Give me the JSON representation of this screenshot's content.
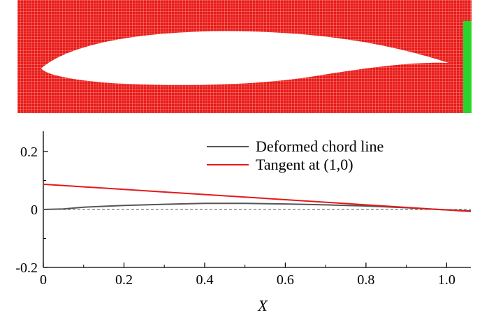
{
  "mesh_panel": {
    "mesh_color": "#e3130f",
    "grid_line_color": "#f7b9b7",
    "outer_boundary_color": "#2bd42b",
    "airfoil_fill": "#ffffff"
  },
  "chart_data": {
    "type": "line",
    "xlabel": "X",
    "ylabel": "",
    "xlim": [
      0,
      1.06
    ],
    "ylim": [
      -0.2,
      0.27
    ],
    "x_ticks": [
      0,
      0.2,
      0.4,
      0.6,
      0.8,
      1.0
    ],
    "x_tick_labels": [
      "0",
      "0.2",
      "0.4",
      "0.6",
      "0.8",
      "1.0"
    ],
    "y_ticks": [
      0.2,
      0,
      -0.2
    ],
    "y_tick_labels": [
      "0.2",
      "0",
      "-0.2"
    ],
    "legend_position": "top-right",
    "reference_line": {
      "y": 0,
      "style": "dashed",
      "color": "#555555"
    },
    "series": [
      {
        "name": "Deformed chord line",
        "color": "#555555",
        "x": [
          0,
          0.05,
          0.1,
          0.2,
          0.3,
          0.4,
          0.5,
          0.6,
          0.7,
          0.8,
          0.9,
          0.95,
          1.0,
          1.06
        ],
        "y": [
          0,
          0.002,
          0.008,
          0.014,
          0.018,
          0.021,
          0.021,
          0.019,
          0.016,
          0.012,
          0.006,
          0.002,
          -0.001,
          -0.005
        ]
      },
      {
        "name": "Tangent at (1,0)",
        "color": "#e31a1c",
        "x": [
          0,
          1.06
        ],
        "y": [
          0.087,
          -0.007
        ]
      }
    ]
  }
}
